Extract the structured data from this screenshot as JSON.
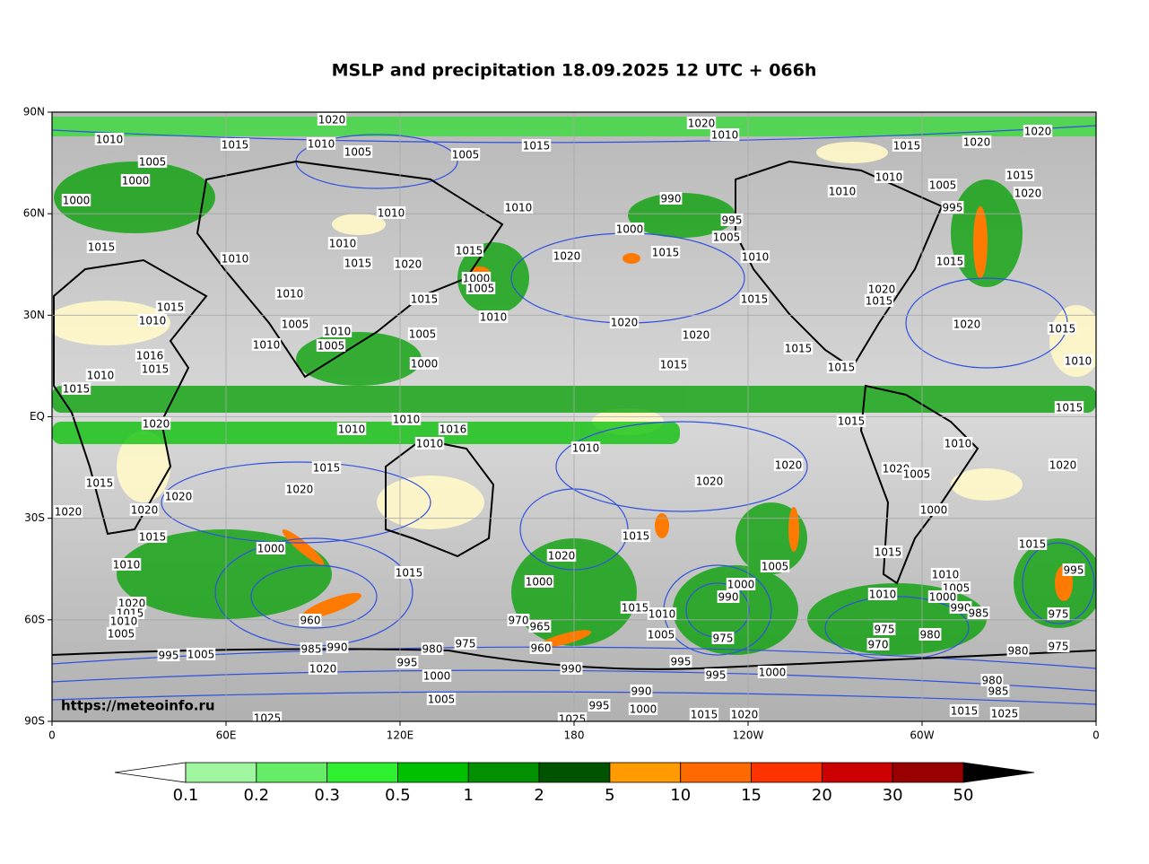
{
  "title": "MSLP and precipitation 18.09.2025 12 UTC + 066h",
  "watermark": "https://meteoinfo.ru",
  "map": {
    "xlim": [
      0,
      360
    ],
    "ylim": [
      -90,
      90
    ],
    "xticks": [
      0,
      {
        "value": 60,
        "label": "60E"
      },
      {
        "value": 120,
        "label": "120E"
      },
      180,
      {
        "value": 240,
        "label": "120W"
      },
      {
        "value": 300,
        "label": "60W"
      },
      {
        "value": 360,
        "label": "0"
      }
    ],
    "yticks": [
      {
        "value": 90,
        "label": "90N"
      },
      {
        "value": 60,
        "label": "60N"
      },
      {
        "value": 30,
        "label": "30N"
      },
      {
        "value": 0,
        "label": "EQ"
      },
      {
        "value": -30,
        "label": "30S"
      },
      {
        "value": -60,
        "label": "60S"
      },
      {
        "value": -90,
        "label": "90S"
      }
    ],
    "grid": true,
    "isobar_labels": [
      "1020",
      "1020",
      "1010",
      "1020",
      "1010",
      "1015",
      "1010",
      "1005",
      "1005",
      "1015",
      "1015",
      "1020",
      "1005",
      "1000",
      "990",
      "1010",
      "1010",
      "1015",
      "1020",
      "1000",
      "1010",
      "1010",
      "995",
      "1005",
      "995",
      "1000",
      "1005",
      "1015",
      "1020",
      "1010",
      "1015",
      "1010",
      "1015",
      "1010",
      "1015",
      "1020",
      "1015",
      "1000",
      "1005",
      "1020",
      "1015",
      "1015",
      "1015",
      "1010",
      "1015",
      "1010",
      "1010",
      "1020",
      "1020",
      "1020",
      "1015",
      "1005",
      "1010",
      "1005",
      "1010",
      "1005",
      "1000",
      "1015",
      "1015",
      "1015",
      "1010",
      "1016",
      "1015",
      "1010",
      "1015",
      "1015",
      "1015",
      "1020",
      "1010",
      "1010",
      "1016",
      "1010",
      "1010",
      "1010",
      "1015",
      "1020",
      "1020",
      "1005",
      "1020",
      "1020",
      "1020",
      "1020",
      "1015",
      "1020",
      "1020",
      "1000",
      "1015",
      "1015",
      "1015",
      "1000",
      "1020",
      "1015",
      "995",
      "1005",
      "1010",
      "1015",
      "1000",
      "1000",
      "1010",
      "1005",
      "1010",
      "1000",
      "990",
      "1020",
      "1015",
      "1010",
      "1015",
      "990",
      "985",
      "975",
      "960",
      "970",
      "965",
      "1010",
      "975",
      "1005",
      "975",
      "1005",
      "970",
      "980",
      "960",
      "985",
      "990",
      "980",
      "975",
      "980",
      "975",
      "995",
      "1005",
      "1020",
      "995",
      "990",
      "995",
      "1000",
      "995",
      "1000",
      "990",
      "1005",
      "995",
      "1000",
      "1015",
      "1020",
      "1025",
      "1015",
      "980",
      "985",
      "1025",
      "1025"
    ]
  },
  "colorbar": {
    "levels": [
      0.1,
      0.2,
      0.3,
      0.5,
      1,
      2,
      5,
      10,
      15,
      20,
      30,
      50
    ],
    "colors": [
      "#a0f5a0",
      "#66ec66",
      "#2ef02e",
      "#00c000",
      "#009000",
      "#005400",
      "#ff9a00",
      "#ff6a00",
      "#ff3300",
      "#cc0000",
      "#990000"
    ],
    "under_color": "#ffffff",
    "over_color": "#000000"
  }
}
